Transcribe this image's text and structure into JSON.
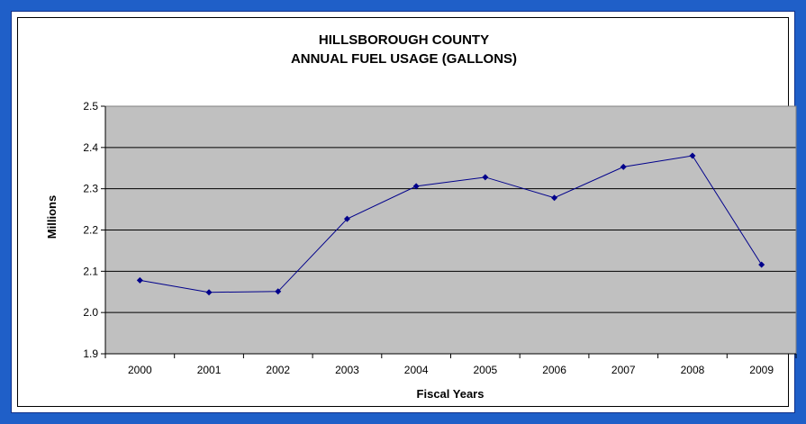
{
  "chart_data": {
    "type": "line",
    "title_line1": "HILLSBOROUGH COUNTY",
    "title_line2": "ANNUAL FUEL USAGE (GALLONS)",
    "xlabel": "Fiscal Years",
    "ylabel": "Millions",
    "categories": [
      "2000",
      "2001",
      "2002",
      "2003",
      "2004",
      "2005",
      "2006",
      "2007",
      "2008",
      "2009"
    ],
    "values": [
      2.078,
      2.049,
      2.051,
      2.227,
      2.306,
      2.328,
      2.278,
      2.353,
      2.38,
      2.116
    ],
    "ylim": [
      1.9,
      2.5
    ],
    "yticks": [
      1.9,
      2.0,
      2.1,
      2.2,
      2.3,
      2.4,
      2.5
    ],
    "ytick_labels": [
      "1.9",
      "2.0",
      "2.1",
      "2.2",
      "2.3",
      "2.4",
      "2.5"
    ],
    "grid": true,
    "colors": {
      "line": "#00008b",
      "plot_background": "#c0c0c0",
      "frame": "#1f5fc8"
    }
  }
}
